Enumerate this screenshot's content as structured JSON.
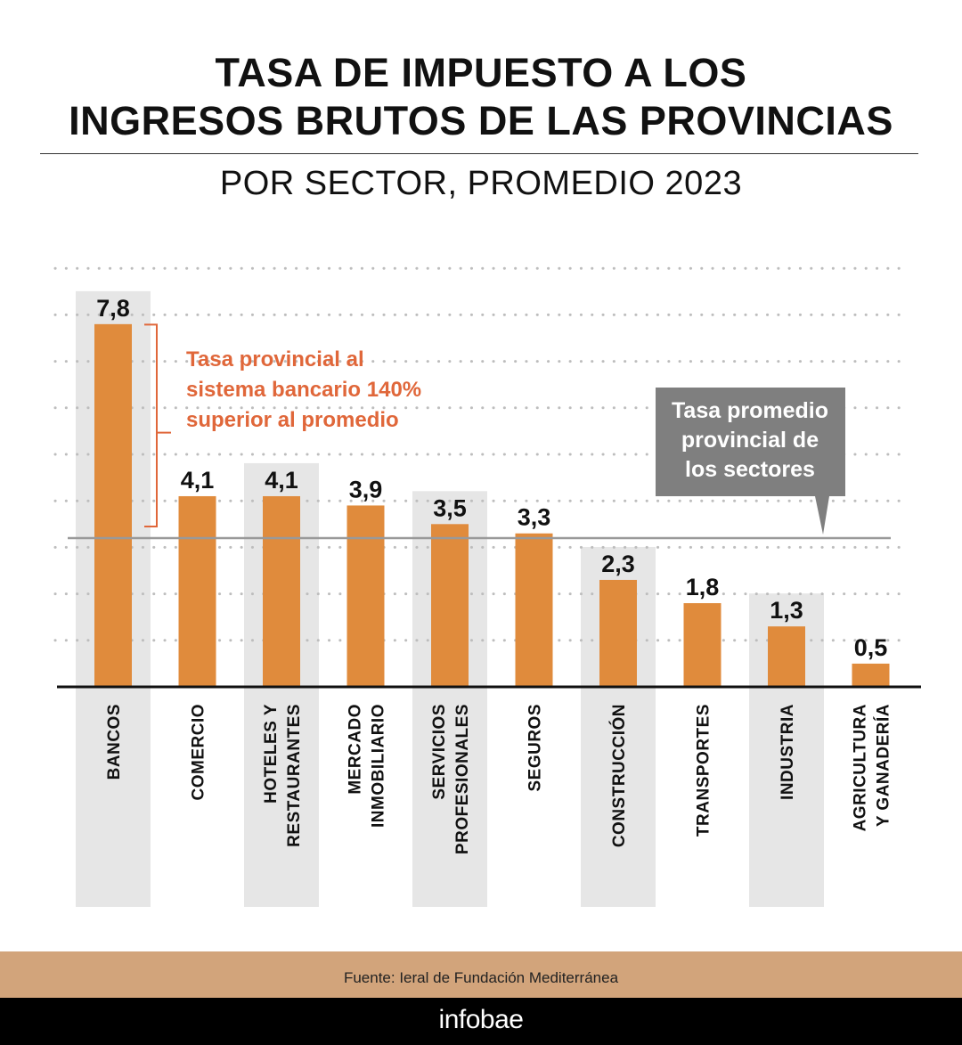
{
  "header": {
    "title_line1": "TASA DE IMPUESTO A LOS",
    "title_line2": "INGRESOS BRUTOS DE LAS PROVINCIAS",
    "subtitle": "POR SECTOR, PROMEDIO 2023"
  },
  "colors": {
    "bar": "#e08b3c",
    "band": "#e6e6e6",
    "accent": "#e0673a",
    "avg_line": "#999999",
    "callout_bg": "#7f7f7f",
    "footer": "#d2a47b",
    "brand_bg": "#000000"
  },
  "chart_data": {
    "type": "bar",
    "title": "TASA DE IMPUESTO A LOS INGRESOS BRUTOS DE LAS PROVINCIAS",
    "subtitle": "POR SECTOR, PROMEDIO 2023",
    "categories": [
      [
        "BANCOS"
      ],
      [
        "COMERCIO"
      ],
      [
        "HOTELES Y",
        "RESTAURANTES"
      ],
      [
        "MERCADO",
        "INMOBILIARIO"
      ],
      [
        "SERVICIOS",
        "PROFESIONALES"
      ],
      [
        "SEGUROS"
      ],
      [
        "CONSTRUCCIÓN"
      ],
      [
        "TRANSPORTES"
      ],
      [
        "INDUSTRIA"
      ],
      [
        "AGRICULTURA",
        "Y GANADERÍA"
      ]
    ],
    "values": [
      7.8,
      4.1,
      4.1,
      3.9,
      3.5,
      3.3,
      2.3,
      1.8,
      1.3,
      0.5
    ],
    "value_labels": [
      "7,8",
      "4,1",
      "4,1",
      "3,9",
      "3,5",
      "3,3",
      "2,3",
      "1,8",
      "1,3",
      "0,5"
    ],
    "shaded_columns": [
      0,
      2,
      4,
      6,
      8
    ],
    "ylim": [
      0,
      9
    ],
    "average_line_value": 3.2,
    "grid": "dotted",
    "annotations": {
      "bank_note": [
        "Tasa provincial al",
        "sistema bancario 140%",
        "superior al promedio"
      ],
      "average_note": [
        "Tasa promedio",
        "provincial de",
        "los sectores"
      ]
    }
  },
  "footer": {
    "source": "Fuente: Ieral de Fundación Mediterránea",
    "brand": "infobae"
  }
}
